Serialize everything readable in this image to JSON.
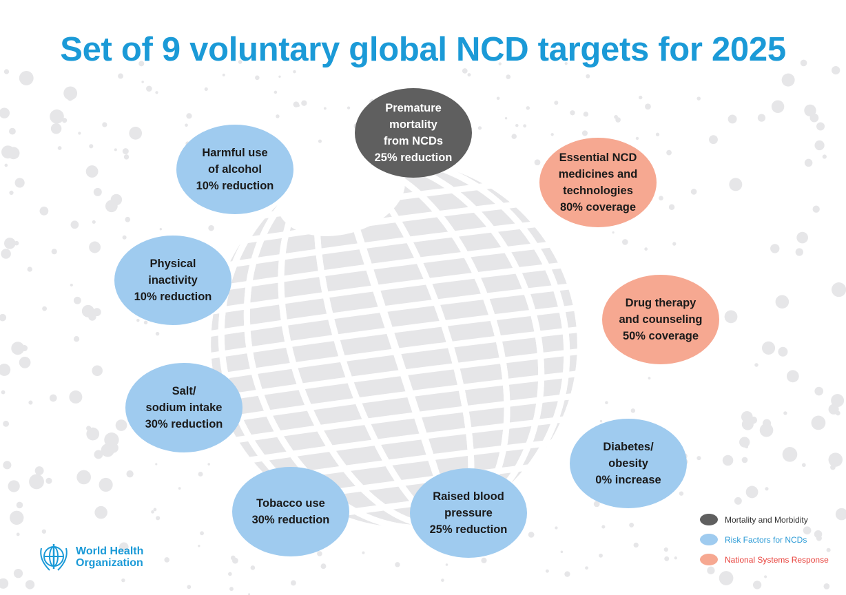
{
  "title": "Set of 9 voluntary global NCD targets for 2025",
  "colors": {
    "title": "#1b9ad7",
    "mortality": "#5f5f5f",
    "risk": "#9fcbef",
    "national": "#f6a891",
    "globe": "#e6e6e8"
  },
  "targets": [
    {
      "text": "Premature\nmortality\nfrom NCDs\n25% reduction",
      "category": "mortality"
    },
    {
      "text": "Harmful use\nof alcohol\n10% reduction",
      "category": "risk"
    },
    {
      "text": "Essential NCD\nmedicines and\ntechnologies\n80% coverage",
      "category": "national"
    },
    {
      "text": "Physical\ninactivity\n10% reduction",
      "category": "risk"
    },
    {
      "text": "Drug therapy\nand counseling\n50% coverage",
      "category": "national"
    },
    {
      "text": "Salt/\nsodium intake\n30% reduction",
      "category": "risk"
    },
    {
      "text": "Diabetes/\nobesity\n0% increase",
      "category": "risk"
    },
    {
      "text": "Tobacco use\n30% reduction",
      "category": "risk"
    },
    {
      "text": "Raised blood\npressure\n25% reduction",
      "category": "risk"
    }
  ],
  "legend": [
    {
      "label": "Mortality and Morbidity",
      "color": "#5f5f5f",
      "text_color": "#333333"
    },
    {
      "label": "Risk Factors for NCDs",
      "color": "#9fcbef",
      "text_color": "#2a9ad6"
    },
    {
      "label": "National Systems Response",
      "color": "#f6a891",
      "text_color": "#e8413b"
    }
  ],
  "logo": {
    "line1": "World Health",
    "line2": "Organization",
    "icon": "who-emblem-icon"
  }
}
